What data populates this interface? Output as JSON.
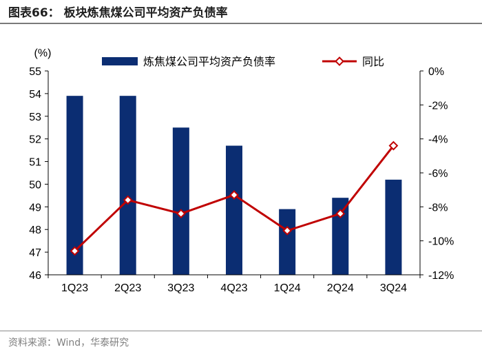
{
  "header": {
    "title": "图表66：  板块炼焦煤公司平均资产负债率"
  },
  "footer": {
    "source": "资料来源：Wind，华泰研究"
  },
  "colors": {
    "bar": "#0b2d72",
    "line": "#c00000",
    "marker_fill": "#ffffff",
    "rule": "#7a7a7a",
    "axis": "#000000"
  },
  "chart_data": {
    "type": "bar",
    "categories": [
      "1Q23",
      "2Q23",
      "3Q23",
      "4Q23",
      "1Q24",
      "2Q24",
      "3Q24"
    ],
    "y_unit_label": "(%)",
    "ylim": [
      46,
      55
    ],
    "yticks": [
      46,
      47,
      48,
      49,
      50,
      51,
      52,
      53,
      54,
      55
    ],
    "y2lim": [
      -12,
      0
    ],
    "y2ticks": [
      0,
      -2,
      -4,
      -6,
      -8,
      -10,
      -12
    ],
    "y2_tick_suffix": "%",
    "grid": false,
    "legend_position": "top",
    "series": [
      {
        "name": "炼焦煤公司平均资产负债率",
        "kind": "bar",
        "axis": "left",
        "values": [
          53.9,
          53.9,
          52.5,
          51.7,
          48.9,
          49.4,
          50.2
        ]
      },
      {
        "name": "同比",
        "kind": "line",
        "axis": "right",
        "values": [
          -10.6,
          -7.6,
          -8.4,
          -7.3,
          -9.4,
          -8.4,
          -4.4
        ]
      }
    ]
  }
}
